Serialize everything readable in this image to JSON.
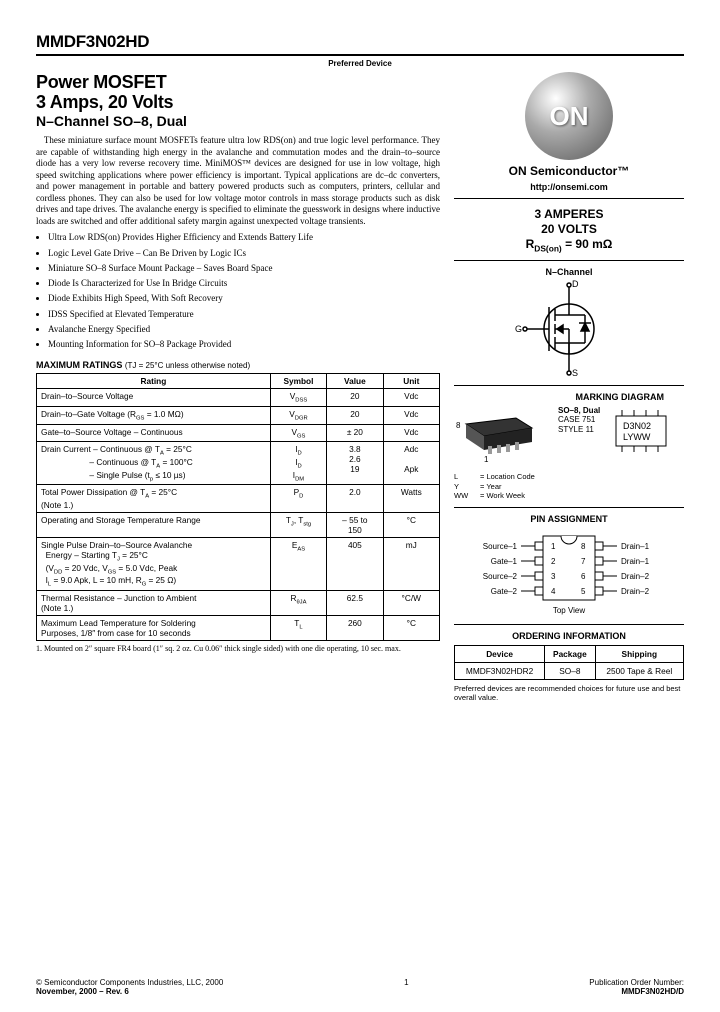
{
  "header": {
    "part_number": "MMDF3N02HD",
    "preferred": "Preferred Device"
  },
  "title": {
    "line1": "Power MOSFET",
    "line2": "3 Amps, 20 Volts",
    "subtitle": "N–Channel SO–8, Dual"
  },
  "body": "These miniature surface mount MOSFETs feature ultra low RDS(on) and true logic level performance. They are capable of withstanding high energy in the avalanche and commutation modes and the drain–to–source diode has a very low reverse recovery time. MiniMOS™ devices are designed for use in low voltage, high speed switching applications where power efficiency is important. Typical applications are dc–dc converters, and power management in portable and battery powered products such as computers, printers, cellular and cordless phones. They can also be used for low voltage motor controls in mass storage products such as disk drives and tape drives. The avalanche energy is specified to eliminate the guesswork in designs where inductive loads are switched and offer additional safety margin against unexpected voltage transients.",
  "features": [
    "Ultra Low RDS(on) Provides Higher Efficiency and Extends Battery Life",
    "Logic Level Gate Drive – Can Be Driven by Logic ICs",
    "Miniature SO–8 Surface Mount Package – Saves Board Space",
    "Diode Is Characterized for Use In Bridge Circuits",
    "Diode Exhibits High Speed, With Soft Recovery",
    "IDSS Specified at Elevated Temperature",
    "Avalanche Energy Specified",
    "Mounting Information for SO–8 Package Provided"
  ],
  "ratings": {
    "title": "MAXIMUM RATINGS",
    "condition": "(TJ = 25°C unless otherwise noted)",
    "columns": [
      "Rating",
      "Symbol",
      "Value",
      "Unit"
    ],
    "rows": [
      {
        "r": "Drain–to–Source Voltage",
        "s": "V<sub>DSS</sub>",
        "v": "20",
        "u": "Vdc"
      },
      {
        "r": "Drain–to–Gate Voltage (R<sub>GS</sub> = 1.0 MΩ)",
        "s": "V<sub>DGR</sub>",
        "v": "20",
        "u": "Vdc"
      },
      {
        "r": "Gate–to–Source Voltage – Continuous",
        "s": "V<sub>GS</sub>",
        "v": "± 20",
        "u": "Vdc"
      },
      {
        "r": "Drain Current – Continuous @ T<sub>A</sub> = 25°C<br>&nbsp;&nbsp;&nbsp;&nbsp;&nbsp;&nbsp;&nbsp;&nbsp;&nbsp;&nbsp;&nbsp;&nbsp;&nbsp;&nbsp;&nbsp;&nbsp;&nbsp;&nbsp;&nbsp;&nbsp;&nbsp;– Continuous @ T<sub>A</sub> = 100°C<br>&nbsp;&nbsp;&nbsp;&nbsp;&nbsp;&nbsp;&nbsp;&nbsp;&nbsp;&nbsp;&nbsp;&nbsp;&nbsp;&nbsp;&nbsp;&nbsp;&nbsp;&nbsp;&nbsp;&nbsp;&nbsp;– Single Pulse (t<sub>p</sub> ≤ 10 µs)",
        "s": "I<sub>D</sub><br>I<sub>D</sub><br>I<sub>DM</sub>",
        "v": "3.8<br>2.6<br>19",
        "u": "Adc<br><br>Apk"
      },
      {
        "r": "Total Power Dissipation @ T<sub>A</sub> = 25°C<br>(Note 1.)",
        "s": "P<sub>D</sub>",
        "v": "2.0",
        "u": "Watts"
      },
      {
        "r": "Operating and Storage Temperature Range",
        "s": "T<sub>J</sub>, T<sub>stg</sub>",
        "v": "– 55 to<br>150",
        "u": "°C"
      },
      {
        "r": "Single Pulse Drain–to–Source Avalanche<br>&nbsp;&nbsp;Energy – Starting T<sub>J</sub> = 25°C<br>&nbsp;&nbsp;(V<sub>DD</sub> = 20 Vdc, V<sub>GS</sub> = 5.0 Vdc, Peak<br>&nbsp;&nbsp;I<sub>L</sub> = 9.0 Apk, L = 10 mH, R<sub>G</sub> = 25 Ω)",
        "s": "E<sub>AS</sub>",
        "v": "405",
        "u": "mJ"
      },
      {
        "r": "Thermal Resistance – Junction to Ambient<br>(Note 1.)",
        "s": "R<sub>θJA</sub>",
        "v": "62.5",
        "u": "°C/W"
      },
      {
        "r": "Maximum Lead Temperature for Soldering<br>Purposes, 1/8″ from case for 10 seconds",
        "s": "T<sub>L</sub>",
        "v": "260",
        "u": "°C"
      }
    ],
    "note": "1. Mounted on 2″ square FR4 board (1″ sq. 2 oz. Cu 0.06″ thick single sided) with one die operating, 10 sec. max."
  },
  "logo": {
    "text": "ON",
    "brand": "ON Semiconductor™",
    "url": "http://onsemi.com"
  },
  "specs": {
    "line1": "3 AMPERES",
    "line2": "20 VOLTS",
    "line3_prefix": "R",
    "line3_sub": "DS(on)",
    "line3_rest": " = 90 mΩ"
  },
  "schematic": {
    "title": "N–Channel",
    "d": "D",
    "g": "G",
    "s": "S"
  },
  "marking": {
    "title": "MARKING DIAGRAM",
    "pkg_line1": "SO–8, Dual",
    "pkg_line2": "CASE 751",
    "pkg_line3": "STYLE 11",
    "pin8": "8",
    "pin1": "1",
    "chip_line1": "D3N02",
    "chip_line2": "LYWW",
    "legend_l": "= Location Code",
    "legend_y": "= Year",
    "legend_ww": "= Work Week",
    "l": "L",
    "y": "Y",
    "ww": "WW"
  },
  "pins": {
    "title": "PIN ASSIGNMENT",
    "left": [
      "Source–1",
      "Gate–1",
      "Source–2",
      "Gate–2"
    ],
    "right": [
      "Drain–1",
      "Drain–1",
      "Drain–2",
      "Drain–2"
    ],
    "nums_left": [
      "1",
      "2",
      "3",
      "4"
    ],
    "nums_right": [
      "8",
      "7",
      "6",
      "5"
    ],
    "topview": "Top View"
  },
  "ordering": {
    "title": "ORDERING INFORMATION",
    "columns": [
      "Device",
      "Package",
      "Shipping"
    ],
    "row": [
      "MMDF3N02HDR2",
      "SO–8",
      "2500 Tape & Reel"
    ]
  },
  "pref_note": "Preferred devices are recommended choices for future use and best overall value.",
  "footer": {
    "left_line1": "© Semiconductor Components Industries, LLC, 2000",
    "left_line2": "November, 2000 – Rev. 6",
    "page": "1",
    "right_line1": "Publication Order Number:",
    "right_line2": "MMDF3N02HD/D"
  },
  "colors": {
    "text": "#000000",
    "rule": "#000000",
    "sphere_dark": "#666666",
    "sphere_light": "#ffffff"
  }
}
